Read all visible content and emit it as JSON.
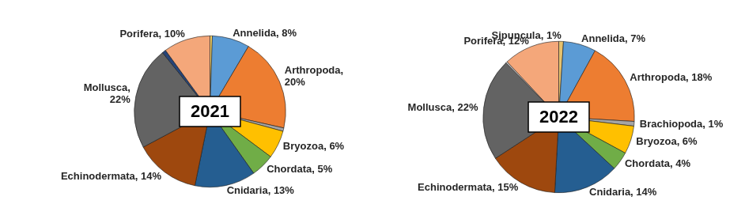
{
  "chart_data": [
    {
      "type": "pie",
      "title": "2021",
      "categories": [
        null,
        "Annelida",
        "Arthropoda",
        null,
        "Bryozoa",
        "Chordata",
        "Cnidaria",
        "Echinodermata",
        "Mollusca",
        null,
        "Porifera"
      ],
      "values": [
        0.5,
        8,
        20,
        0.7,
        6,
        5,
        13,
        14,
        22,
        0.8,
        10
      ],
      "value_labels": [
        null,
        "Annelida, 8%",
        "Arthropoda,\n20%",
        null,
        "Bryozoa, 6%",
        "Chordata, 5%",
        "Cnidaria, 13%",
        "Echinodermata, 14%",
        "Mollusca,\n22%",
        null,
        "Porifera, 10%"
      ],
      "colors": [
        "#ffd966",
        "#5b9bd5",
        "#ed7d31",
        "#a5a5a5",
        "#ffc000",
        "#70ad47",
        "#255e91",
        "#9e480e",
        "#636363",
        "#264478",
        "#f4a77a"
      ],
      "data_labels": true
    },
    {
      "type": "pie",
      "title": "2022",
      "categories": [
        "Sipuncula",
        "Annelida",
        "Arthropoda",
        "Brachiopoda",
        "Bryozoa",
        "Chordata",
        "Cnidaria",
        "Echinodermata",
        "Mollusca",
        null,
        "Porifera"
      ],
      "values": [
        1,
        7,
        18,
        1,
        6,
        4,
        14,
        15,
        22,
        0.3,
        12
      ],
      "value_labels": [
        "Sipuncula, 1%",
        "Annelida, 7%",
        "Arthropoda, 18%",
        "Brachiopoda, 1%",
        "Bryozoa, 6%",
        "Chordata, 4%",
        "Cnidaria, 14%",
        "Echinodermata, 15%",
        "Mollusca, 22%",
        null,
        "Porifera, 12%"
      ],
      "colors": [
        "#e6c26e",
        "#5b9bd5",
        "#ed7d31",
        "#a5a5a5",
        "#ffc000",
        "#70ad47",
        "#255e91",
        "#9e480e",
        "#636363",
        "#d9d9d9",
        "#f4a77a"
      ],
      "data_labels": true
    }
  ]
}
